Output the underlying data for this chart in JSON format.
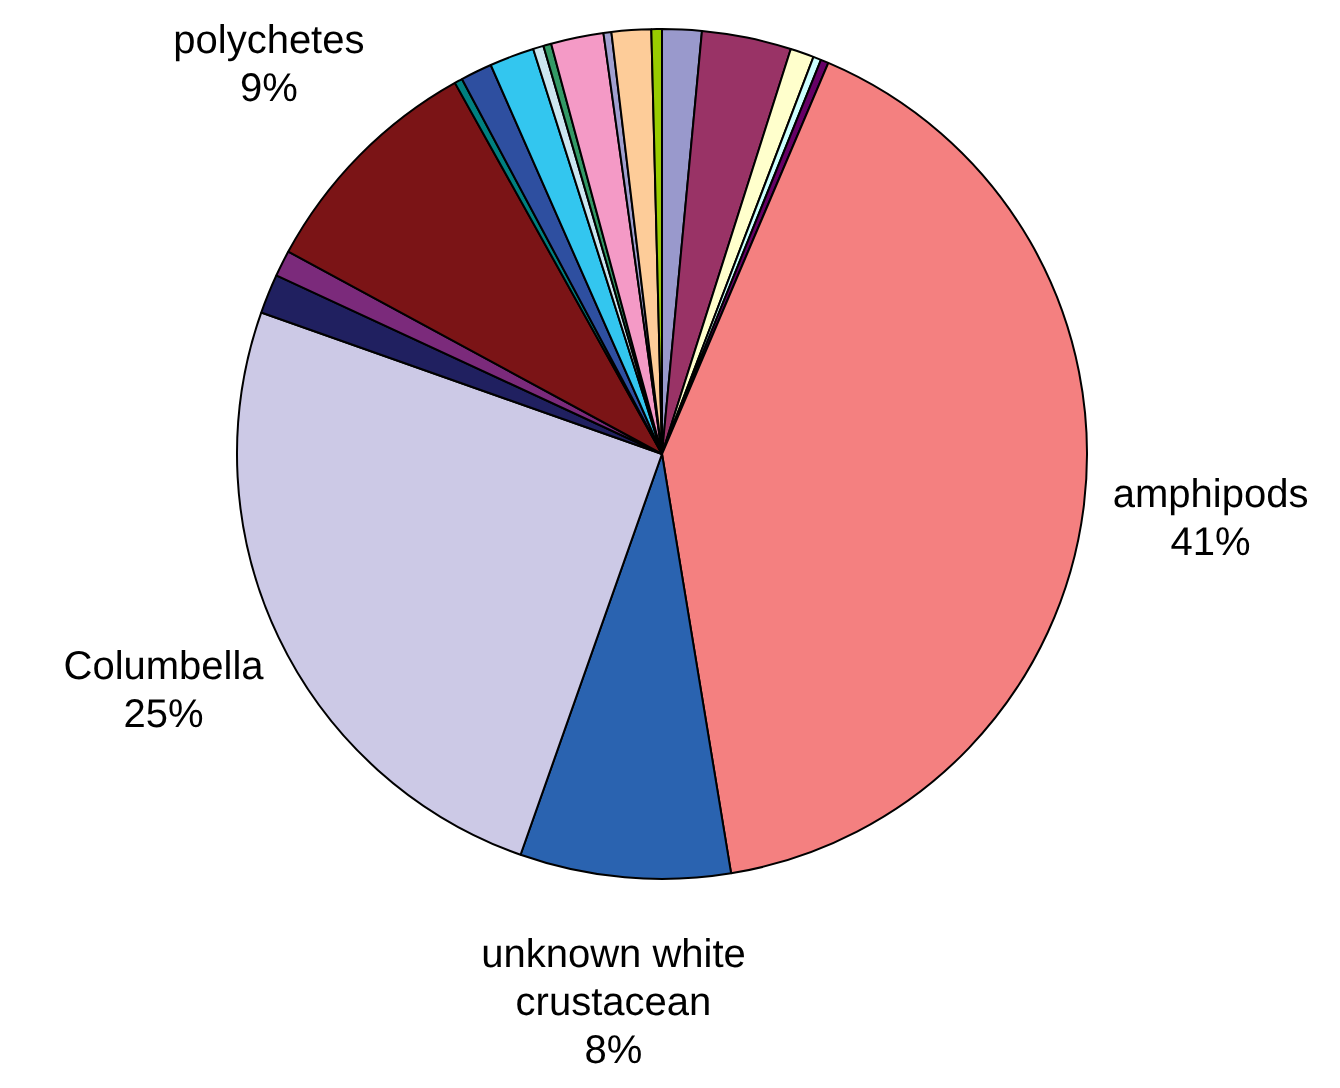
{
  "chart_data": {
    "type": "pie",
    "categories": [
      null,
      null,
      null,
      null,
      null,
      "amphipods",
      "unknown white crustacean",
      "Columbella",
      null,
      null,
      "polychetes",
      null,
      null,
      null,
      null,
      null,
      null,
      null,
      null,
      null
    ],
    "values": [
      1.5,
      3.4,
      0.9,
      0.3,
      0.3,
      41,
      8,
      25,
      1.5,
      1,
      9,
      0.3,
      1.2,
      1.7,
      0.4,
      0.3,
      2,
      0.3,
      1.5,
      0.4
    ],
    "value_labels": [
      null,
      null,
      null,
      null,
      null,
      "41%",
      "8%",
      "25%",
      null,
      null,
      "9%",
      null,
      null,
      null,
      null,
      null,
      null,
      null,
      null,
      null
    ],
    "colors": [
      "#9999cc",
      "#993366",
      "#ffffcc",
      "#ccffff",
      "#660066",
      "#f48080",
      "#2a63b0",
      "#ccc9e6",
      "#202060",
      "#7b2a7b",
      "#7b1416",
      "#008080",
      "#2e4fa0",
      "#33c6ef",
      "#cce6f0",
      "#339966",
      "#f49ac6",
      "#a0a0d0",
      "#fdcc99",
      "#99cc00"
    ],
    "legend": false
  }
}
